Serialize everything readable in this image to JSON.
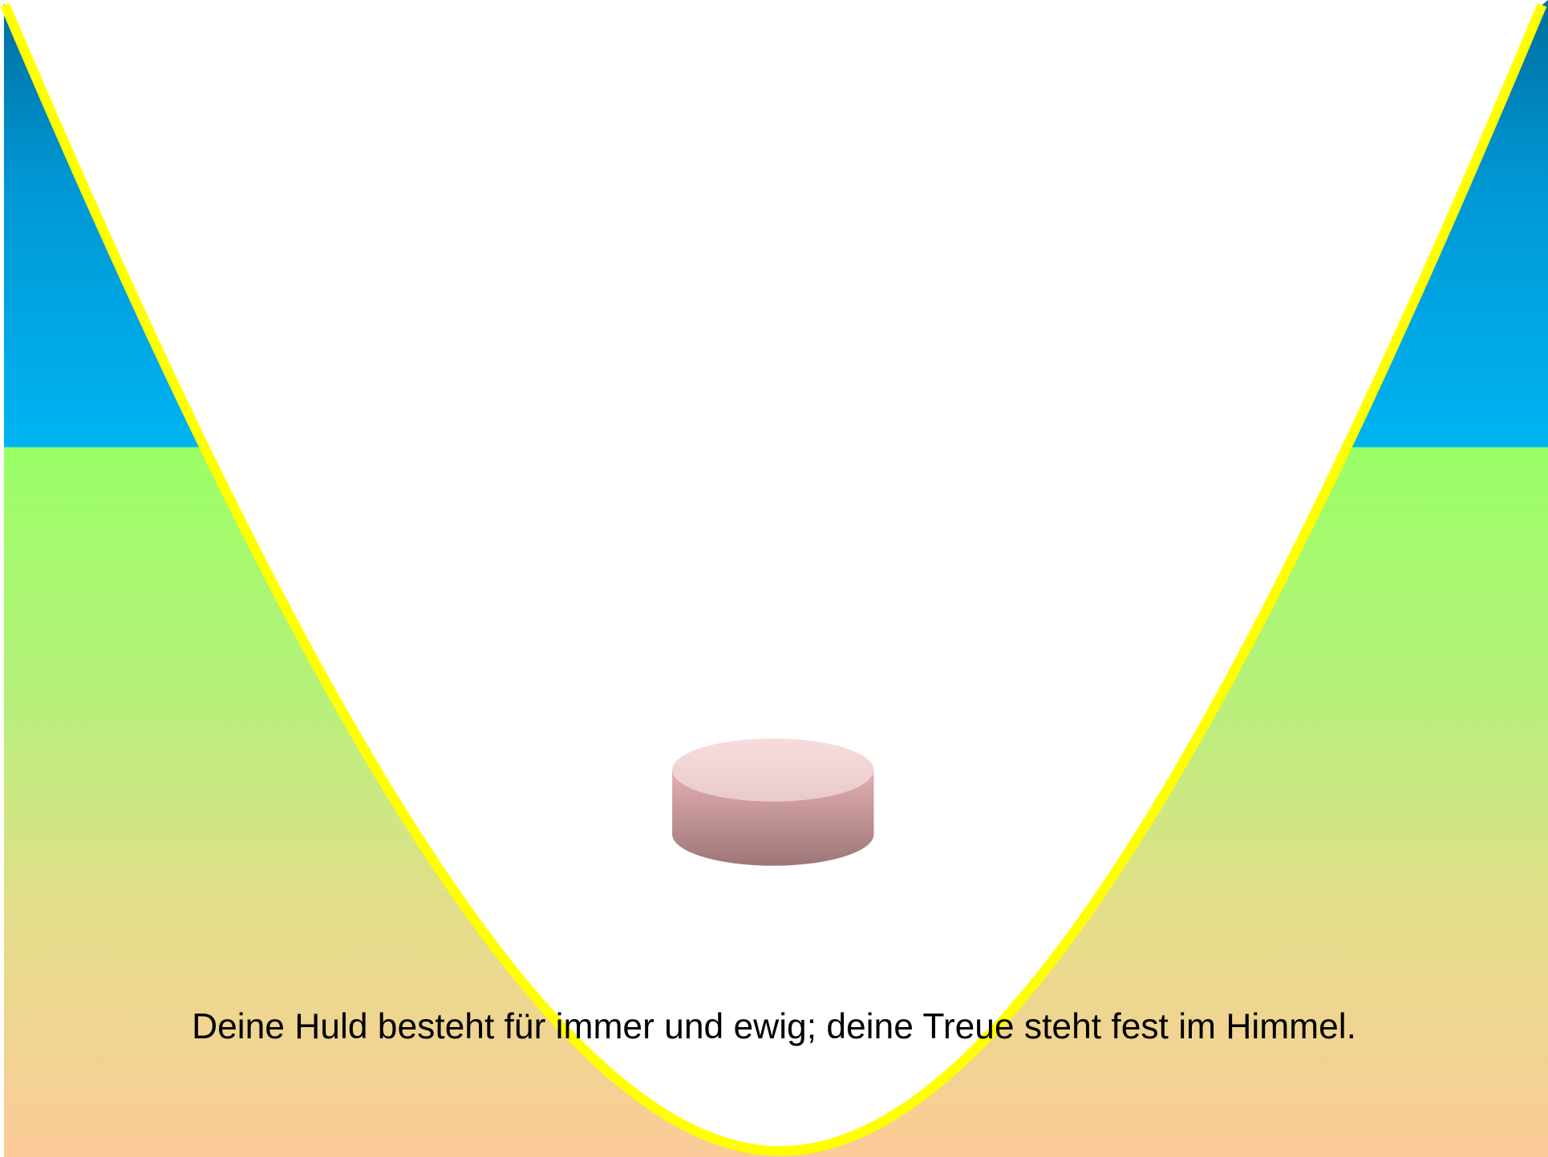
{
  "slide": {
    "caption": "Deine Huld besteht für immer und ewig; deine Treue steht fest im Himmel."
  }
}
